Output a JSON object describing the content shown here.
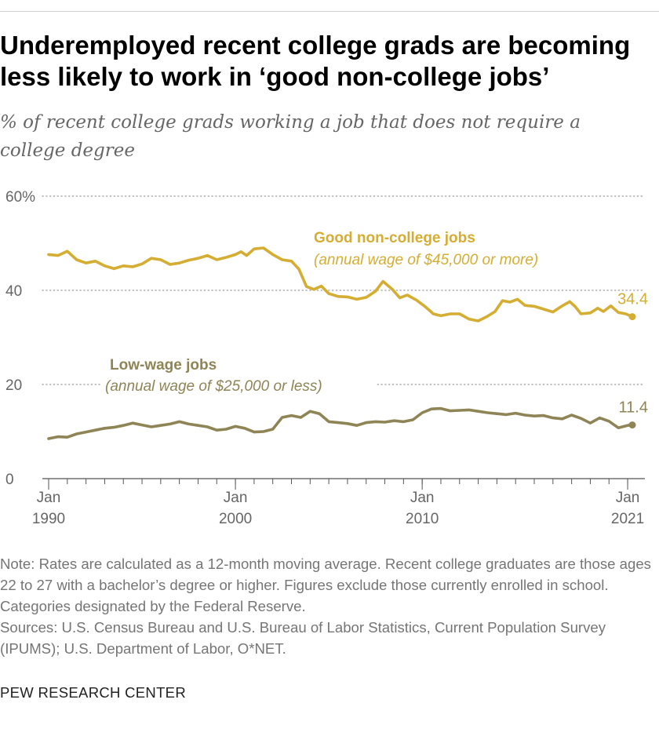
{
  "header": {
    "title": "Underemployed recent college grads are becoming less likely to work in ‘good non-college jobs’",
    "subtitle": "% of recent college grads working a job that does not require a college degree"
  },
  "chart_data": {
    "type": "line",
    "title": "Underemployed recent college grads are becoming less likely to work in ‘good non-college jobs’",
    "subtitle": "% of recent college grads working a job that does not require a college degree",
    "xlabel": "",
    "ylabel": "",
    "xlim": [
      1990.0,
      2021.25
    ],
    "ylim": [
      0,
      60
    ],
    "grid": true,
    "y_ticks": [
      {
        "value": 0,
        "label": "0"
      },
      {
        "value": 20,
        "label": "20"
      },
      {
        "value": 40,
        "label": "40"
      },
      {
        "value": 60,
        "label": "60%"
      }
    ],
    "x_ticks": [
      {
        "value": 1990,
        "line1": "Jan",
        "line2": "1990"
      },
      {
        "value": 2000,
        "line1": "Jan",
        "line2": "2000"
      },
      {
        "value": 2010,
        "line1": "Jan",
        "line2": "2010"
      },
      {
        "value": 2021,
        "line1": "Jan",
        "line2": "2021"
      }
    ],
    "series": [
      {
        "name": "Good non-college jobs",
        "note": "(annual wage of $45,000 or more)",
        "color": "#D4AD32",
        "end_label": "34.4",
        "points": [
          [
            1990.0,
            47.6
          ],
          [
            1990.5,
            47.4
          ],
          [
            1991.0,
            48.3
          ],
          [
            1991.5,
            46.5
          ],
          [
            1992.0,
            45.8
          ],
          [
            1992.5,
            46.2
          ],
          [
            1993.0,
            45.2
          ],
          [
            1993.5,
            44.6
          ],
          [
            1994.0,
            45.2
          ],
          [
            1994.5,
            45.0
          ],
          [
            1995.0,
            45.6
          ],
          [
            1995.5,
            46.8
          ],
          [
            1996.0,
            46.5
          ],
          [
            1996.5,
            45.5
          ],
          [
            1997.0,
            45.8
          ],
          [
            1997.5,
            46.4
          ],
          [
            1998.0,
            46.8
          ],
          [
            1998.5,
            47.4
          ],
          [
            1999.0,
            46.5
          ],
          [
            1999.5,
            47.0
          ],
          [
            2000.0,
            47.6
          ],
          [
            2000.3,
            48.2
          ],
          [
            2000.6,
            47.4
          ],
          [
            2001.0,
            48.8
          ],
          [
            2001.5,
            49.0
          ],
          [
            2002.0,
            47.6
          ],
          [
            2002.5,
            46.5
          ],
          [
            2003.0,
            46.2
          ],
          [
            2003.4,
            44.5
          ],
          [
            2003.8,
            40.8
          ],
          [
            2004.2,
            40.2
          ],
          [
            2004.6,
            40.9
          ],
          [
            2005.0,
            39.3
          ],
          [
            2005.5,
            38.7
          ],
          [
            2006.0,
            38.6
          ],
          [
            2006.5,
            38.1
          ],
          [
            2007.0,
            38.5
          ],
          [
            2007.5,
            39.8
          ],
          [
            2007.9,
            41.9
          ],
          [
            2008.4,
            40.2
          ],
          [
            2008.8,
            38.4
          ],
          [
            2009.2,
            39.0
          ],
          [
            2009.7,
            37.9
          ],
          [
            2010.2,
            36.4
          ],
          [
            2010.6,
            35.0
          ],
          [
            2011.0,
            34.6
          ],
          [
            2011.5,
            35.0
          ],
          [
            2012.0,
            35.0
          ],
          [
            2012.5,
            33.9
          ],
          [
            2013.0,
            33.5
          ],
          [
            2013.5,
            34.5
          ],
          [
            2013.9,
            35.5
          ],
          [
            2014.3,
            37.8
          ],
          [
            2014.7,
            37.5
          ],
          [
            2015.1,
            38.1
          ],
          [
            2015.5,
            36.8
          ],
          [
            2016.0,
            36.6
          ],
          [
            2016.5,
            36.0
          ],
          [
            2017.0,
            35.4
          ],
          [
            2017.5,
            36.7
          ],
          [
            2017.9,
            37.6
          ],
          [
            2018.2,
            36.5
          ],
          [
            2018.5,
            35.0
          ],
          [
            2019.0,
            35.2
          ],
          [
            2019.4,
            36.2
          ],
          [
            2019.7,
            35.5
          ],
          [
            2020.1,
            36.7
          ],
          [
            2020.5,
            35.3
          ],
          [
            2020.9,
            35.0
          ],
          [
            2021.25,
            34.4
          ]
        ]
      },
      {
        "name": "Low-wage jobs",
        "note": "(annual wage of $25,000 or less)",
        "color": "#8E8455",
        "end_label": "11.4",
        "points": [
          [
            1990.0,
            8.5
          ],
          [
            1990.5,
            8.9
          ],
          [
            1991.0,
            8.8
          ],
          [
            1991.5,
            9.5
          ],
          [
            1992.0,
            9.9
          ],
          [
            1992.5,
            10.3
          ],
          [
            1993.0,
            10.7
          ],
          [
            1993.5,
            10.9
          ],
          [
            1994.0,
            11.3
          ],
          [
            1994.5,
            11.8
          ],
          [
            1995.0,
            11.4
          ],
          [
            1995.5,
            11.0
          ],
          [
            1996.0,
            11.3
          ],
          [
            1996.5,
            11.6
          ],
          [
            1997.0,
            12.1
          ],
          [
            1997.5,
            11.6
          ],
          [
            1998.0,
            11.3
          ],
          [
            1998.5,
            11.0
          ],
          [
            1999.0,
            10.3
          ],
          [
            1999.5,
            10.5
          ],
          [
            2000.0,
            11.1
          ],
          [
            2000.5,
            10.7
          ],
          [
            2001.0,
            9.9
          ],
          [
            2001.5,
            10.0
          ],
          [
            2002.0,
            10.5
          ],
          [
            2002.5,
            13.0
          ],
          [
            2003.0,
            13.4
          ],
          [
            2003.5,
            13.0
          ],
          [
            2004.0,
            14.3
          ],
          [
            2004.5,
            13.8
          ],
          [
            2005.0,
            12.1
          ],
          [
            2005.5,
            11.9
          ],
          [
            2006.0,
            11.7
          ],
          [
            2006.5,
            11.3
          ],
          [
            2007.0,
            11.9
          ],
          [
            2007.5,
            12.1
          ],
          [
            2008.0,
            12.0
          ],
          [
            2008.5,
            12.3
          ],
          [
            2009.0,
            12.1
          ],
          [
            2009.5,
            12.5
          ],
          [
            2010.0,
            14.0
          ],
          [
            2010.5,
            14.8
          ],
          [
            2011.0,
            14.9
          ],
          [
            2011.5,
            14.4
          ],
          [
            2012.0,
            14.5
          ],
          [
            2012.5,
            14.6
          ],
          [
            2013.0,
            14.3
          ],
          [
            2013.5,
            14.0
          ],
          [
            2014.0,
            13.8
          ],
          [
            2014.5,
            13.6
          ],
          [
            2015.0,
            13.9
          ],
          [
            2015.5,
            13.5
          ],
          [
            2016.0,
            13.3
          ],
          [
            2016.5,
            13.4
          ],
          [
            2017.0,
            12.9
          ],
          [
            2017.5,
            12.7
          ],
          [
            2018.0,
            13.5
          ],
          [
            2018.5,
            12.8
          ],
          [
            2019.0,
            11.8
          ],
          [
            2019.5,
            12.9
          ],
          [
            2020.0,
            12.2
          ],
          [
            2020.5,
            10.8
          ],
          [
            2021.0,
            11.3
          ],
          [
            2021.25,
            11.4
          ]
        ]
      }
    ]
  },
  "notes": [
    "Note: Rates are calculated as a 12-month moving average. Recent college graduates are those ages 22 to 27 with a bachelor’s degree or higher. Figures exclude those currently enrolled in school. Categories designated by the Federal Reserve.",
    "Sources: U.S. Census Bureau and U.S. Bureau of Labor Statistics, Current Population Survey (IPUMS); U.S. Department of Labor, O*NET."
  ],
  "footer": {
    "source_org": "PEW RESEARCH CENTER"
  }
}
